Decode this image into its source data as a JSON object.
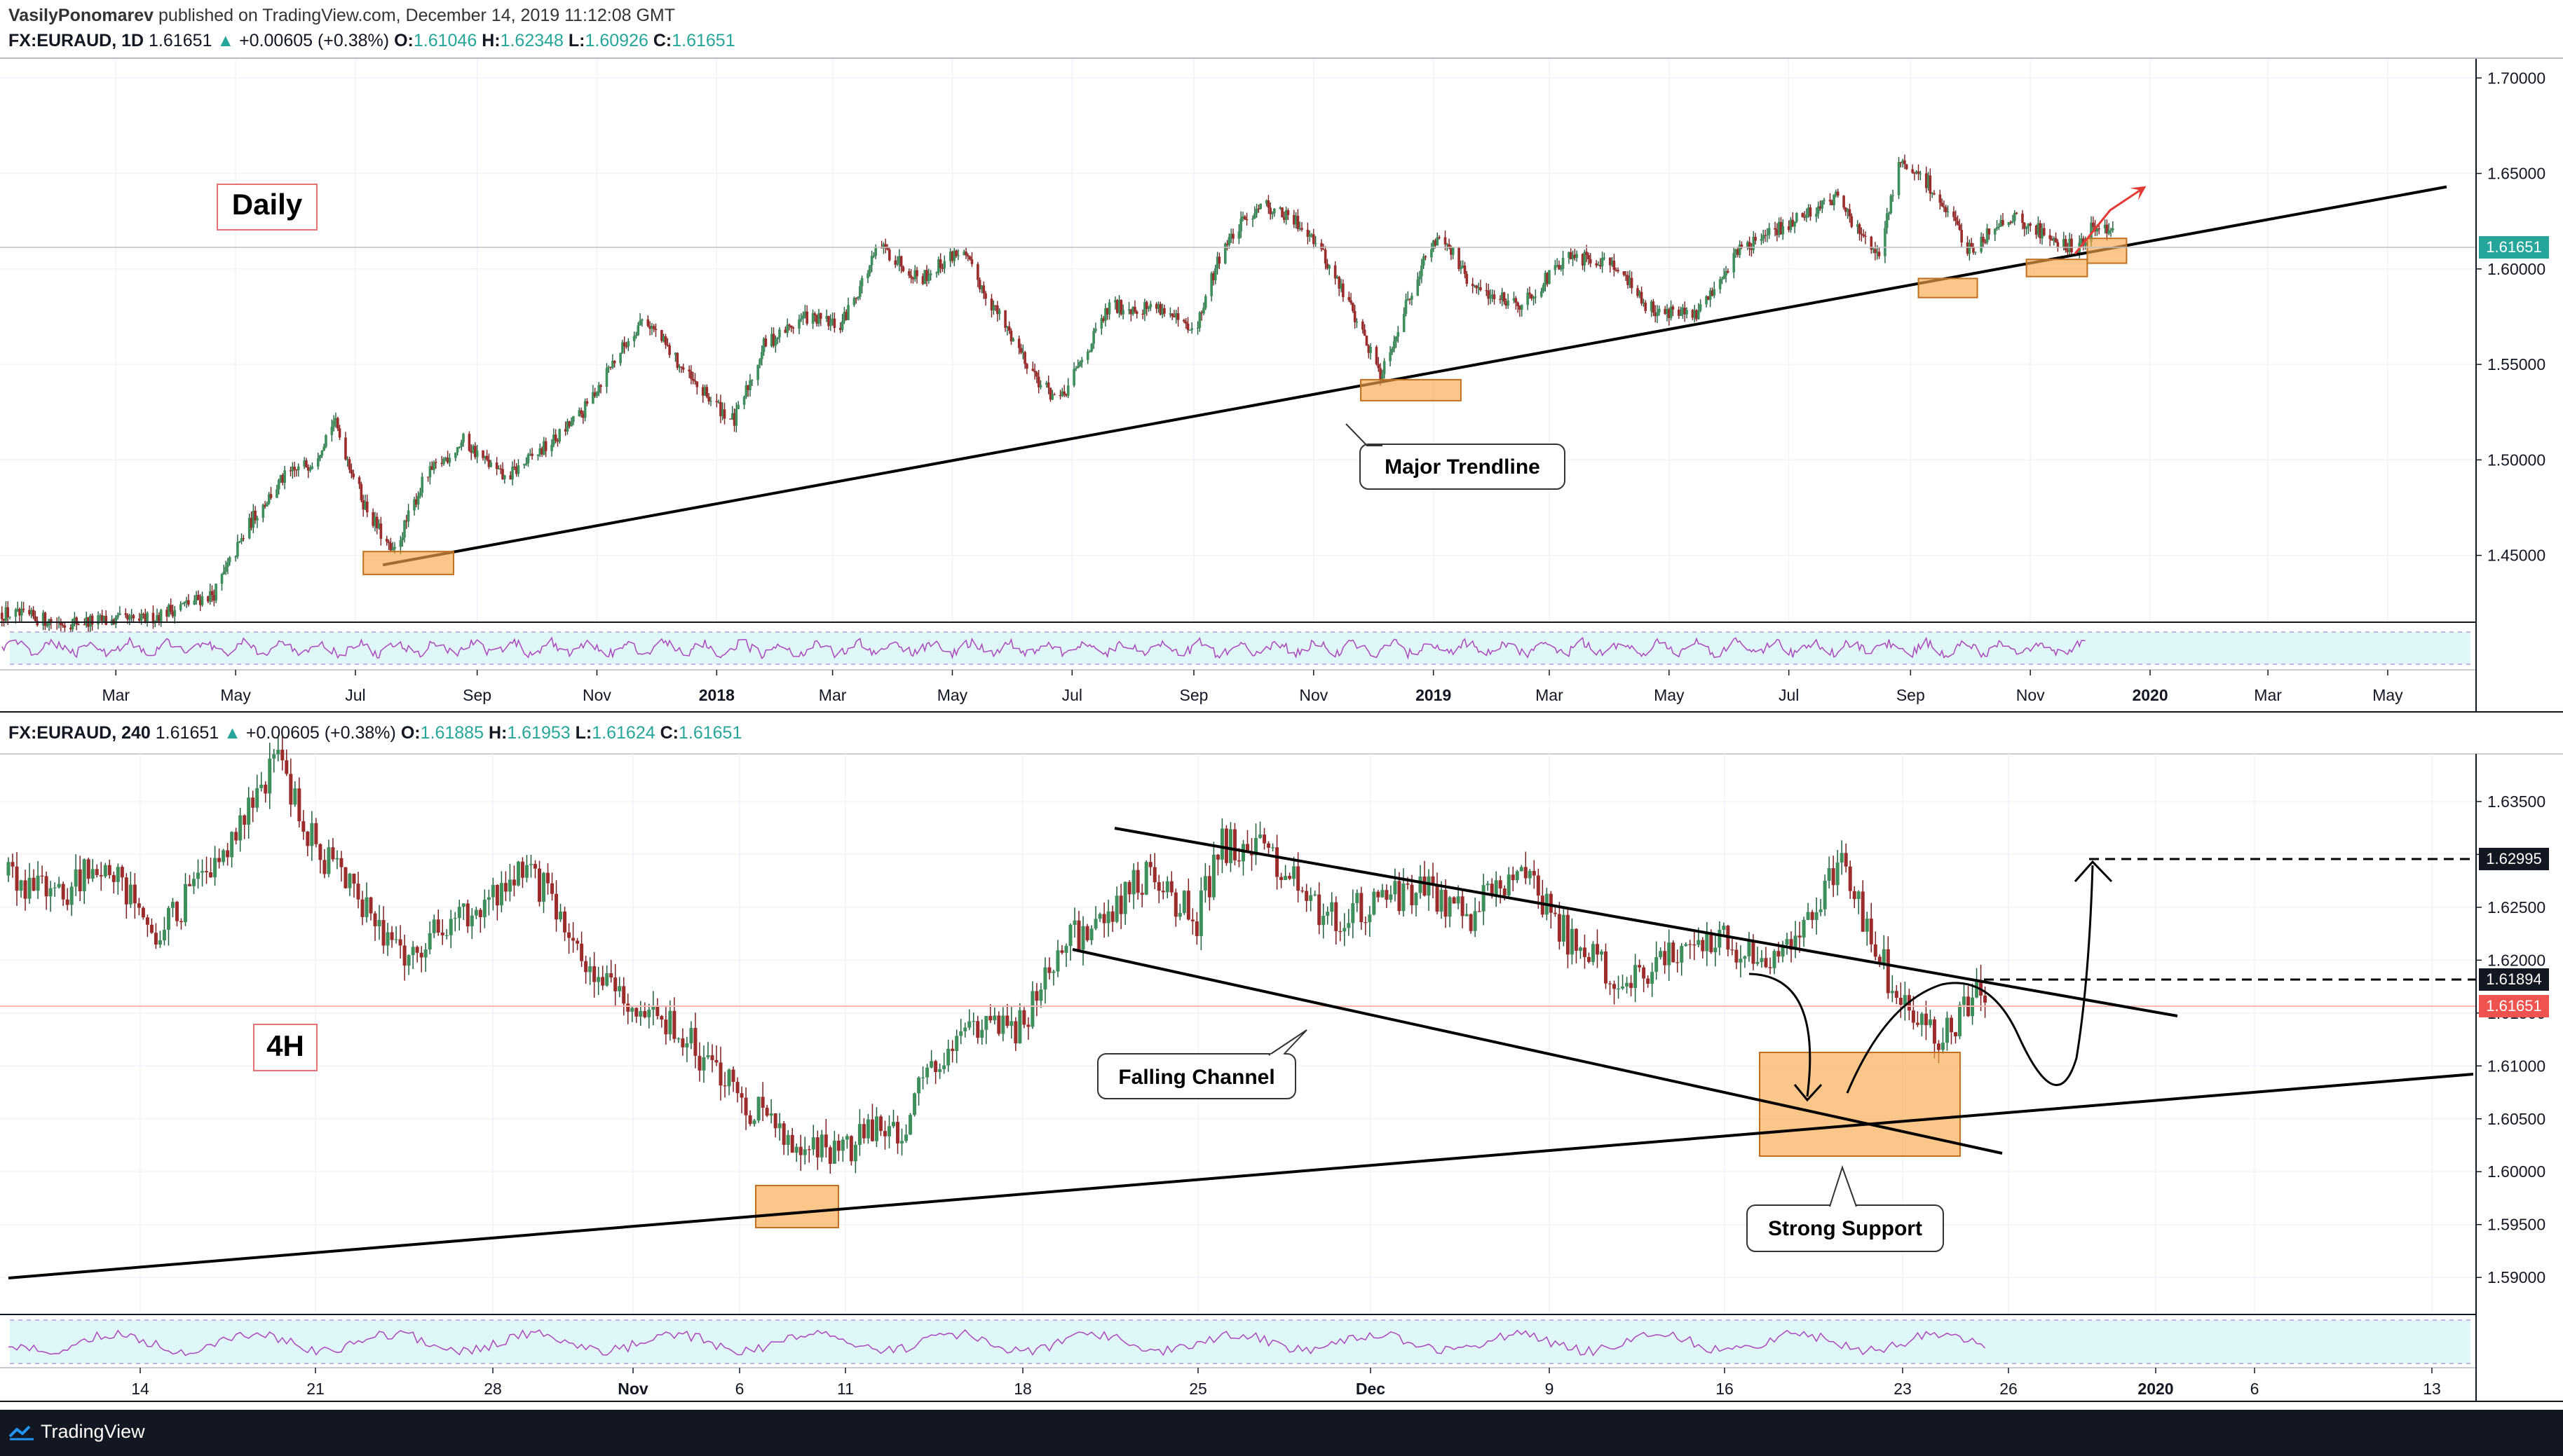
{
  "header": {
    "author": "VasilyPonomarev",
    "published": "published on TradingView.com, December 14, 2019 11:12:08 GMT"
  },
  "legend_daily": {
    "symbol": "FX:EURAUD, 1D",
    "price": "1.61651",
    "change": "+0.00605 (+0.38%)",
    "o_label": "O:",
    "o": "1.61046",
    "h_label": "H:",
    "h": "1.62348",
    "l_label": "L:",
    "l": "1.60926",
    "c_label": "C:",
    "c": "1.61651"
  },
  "legend_4h": {
    "symbol": "FX:EURAUD, 240",
    "price": "1.61651",
    "change": "+0.00605 (+0.38%)",
    "o_label": "O:",
    "o": "1.61885",
    "h_label": "H:",
    "h": "1.61953",
    "l_label": "L:",
    "l": "1.61624",
    "c_label": "C:",
    "c": "1.61651"
  },
  "footer": {
    "brand": "TradingView"
  },
  "colors": {
    "up": "#26a69a",
    "down": "#ef5350",
    "body_up": "#3d8f5c",
    "body_down": "#9c2c2c",
    "zone": "#f7a74a",
    "rsi_band": "#e0f7fa",
    "rsi_line": "#9c27b0",
    "price_tag": "#26a69a",
    "price_tag_red": "#ef5350"
  },
  "chart_data": [
    {
      "type": "candlestick",
      "title": "FX:EURAUD, 1D",
      "label": "Daily",
      "ylim": [
        1.415,
        1.71
      ],
      "y_ticks": [
        "1.70000",
        "1.65000",
        "1.60000",
        "1.55000",
        "1.50000",
        "1.45000"
      ],
      "y_tick_values": [
        1.7,
        1.65,
        1.6,
        1.55,
        1.5,
        1.45
      ],
      "x_ticks": [
        "Mar",
        "May",
        "Jul",
        "Sep",
        "Nov",
        "2018",
        "Mar",
        "May",
        "Jul",
        "Sep",
        "Nov",
        "2019",
        "Mar",
        "May",
        "Jul",
        "Sep",
        "Nov",
        "2020",
        "Mar",
        "May"
      ],
      "last_price": "1.61651",
      "price_path": [
        [
          "2017-01-01",
          1.42
        ],
        [
          "2017-02-01",
          1.415
        ],
        [
          "2017-03-15",
          1.416
        ],
        [
          "2017-04-20",
          1.43
        ],
        [
          "2017-05-10",
          1.47
        ],
        [
          "2017-05-25",
          1.49
        ],
        [
          "2017-06-10",
          1.5
        ],
        [
          "2017-06-20",
          1.521
        ],
        [
          "2017-07-05",
          1.478
        ],
        [
          "2017-07-20",
          1.45
        ],
        [
          "2017-08-05",
          1.49
        ],
        [
          "2017-08-25",
          1.51
        ],
        [
          "2017-09-15",
          1.49
        ],
        [
          "2017-10-10",
          1.51
        ],
        [
          "2017-10-25",
          1.525
        ],
        [
          "2017-11-05",
          1.545
        ],
        [
          "2017-11-25",
          1.575
        ],
        [
          "2017-12-20",
          1.54
        ],
        [
          "2018-01-10",
          1.52
        ],
        [
          "2018-01-25",
          1.56
        ],
        [
          "2018-02-15",
          1.575
        ],
        [
          "2018-03-05",
          1.57
        ],
        [
          "2018-03-25",
          1.612
        ],
        [
          "2018-04-15",
          1.595
        ],
        [
          "2018-05-05",
          1.61
        ],
        [
          "2018-05-25",
          1.575
        ],
        [
          "2018-06-15",
          1.54
        ],
        [
          "2018-06-25",
          1.53
        ],
        [
          "2018-07-20",
          1.58
        ],
        [
          "2018-08-15",
          1.58
        ],
        [
          "2018-09-01",
          1.565
        ],
        [
          "2018-09-15",
          1.61
        ],
        [
          "2018-10-05",
          1.635
        ],
        [
          "2018-10-30",
          1.62
        ],
        [
          "2018-11-20",
          1.58
        ],
        [
          "2018-12-05",
          1.545
        ],
        [
          "2018-12-25",
          1.6
        ],
        [
          "2019-01-05",
          1.62
        ],
        [
          "2019-01-20",
          1.59
        ],
        [
          "2019-02-15",
          1.582
        ],
        [
          "2019-03-10",
          1.605
        ],
        [
          "2019-04-01",
          1.605
        ],
        [
          "2019-04-20",
          1.58
        ],
        [
          "2019-05-15",
          1.575
        ],
        [
          "2019-06-05",
          1.61
        ],
        [
          "2019-06-25",
          1.62
        ],
        [
          "2019-07-25",
          1.638
        ],
        [
          "2019-08-15",
          1.605
        ],
        [
          "2019-08-26",
          1.655
        ],
        [
          "2019-09-10",
          1.645
        ],
        [
          "2019-10-01",
          1.61
        ],
        [
          "2019-10-20",
          1.628
        ],
        [
          "2019-11-05",
          1.62
        ],
        [
          "2019-11-25",
          1.61
        ],
        [
          "2019-12-05",
          1.625
        ],
        [
          "2019-12-14",
          1.6165
        ]
      ],
      "annotations": [
        {
          "text": "Daily",
          "kind": "label"
        },
        {
          "text": "Major Trendline",
          "kind": "callout"
        }
      ],
      "trendline": [
        [
          "2017-07-15",
          1.445
        ],
        [
          "2020-05-31",
          1.643
        ]
      ],
      "support_zones": [
        [
          "2017-07-05",
          "2017-08-20",
          1.44,
          1.452
        ],
        [
          "2018-11-25",
          "2019-01-15",
          1.531,
          1.542
        ],
        [
          "2019-09-05",
          "2019-10-05",
          1.585,
          1.595
        ],
        [
          "2019-10-30",
          "2019-11-30",
          1.596,
          1.605
        ],
        [
          "2019-11-30",
          "2019-12-20",
          1.603,
          1.616
        ]
      ]
    },
    {
      "type": "candlestick",
      "title": "FX:EURAUD, 240",
      "label": "4H",
      "ylim": [
        1.5865,
        1.6395
      ],
      "y_ticks": [
        "1.63500",
        "1.63000",
        "1.62500",
        "1.62000",
        "1.61500",
        "1.61000",
        "1.60500",
        "1.60000",
        "1.59500",
        "1.59000"
      ],
      "y_tick_values": [
        1.635,
        1.63,
        1.625,
        1.62,
        1.615,
        1.61,
        1.605,
        1.6,
        1.595,
        1.59
      ],
      "x_ticks": [
        "14",
        "21",
        "28",
        "Nov",
        "6",
        "11",
        "18",
        "25",
        "Dec",
        "9",
        "16",
        "23",
        "26",
        "2020",
        "6",
        "13"
      ],
      "price_tags": [
        "1.62995",
        "1.61894",
        "1.61651"
      ],
      "price_path": [
        [
          0,
          1.628
        ],
        [
          0.02,
          1.626
        ],
        [
          0.04,
          1.63
        ],
        [
          0.06,
          1.622
        ],
        [
          0.08,
          1.628
        ],
        [
          0.1,
          1.636
        ],
        [
          0.11,
          1.639
        ],
        [
          0.12,
          1.632
        ],
        [
          0.14,
          1.626
        ],
        [
          0.16,
          1.621
        ],
        [
          0.19,
          1.625
        ],
        [
          0.21,
          1.629
        ],
        [
          0.23,
          1.621
        ],
        [
          0.25,
          1.615
        ],
        [
          0.27,
          1.614
        ],
        [
          0.28,
          1.611
        ],
        [
          0.3,
          1.606
        ],
        [
          0.32,
          1.603
        ],
        [
          0.34,
          1.602
        ],
        [
          0.35,
          1.604
        ],
        [
          0.36,
          1.6035
        ],
        [
          0.37,
          1.61
        ],
        [
          0.39,
          1.613
        ],
        [
          0.41,
          1.614
        ],
        [
          0.42,
          1.62
        ],
        [
          0.44,
          1.624
        ],
        [
          0.46,
          1.628
        ],
        [
          0.48,
          1.624
        ],
        [
          0.49,
          1.631
        ],
        [
          0.51,
          1.63
        ],
        [
          0.53,
          1.624
        ],
        [
          0.55,
          1.625
        ],
        [
          0.57,
          1.627
        ],
        [
          0.59,
          1.624
        ],
        [
          0.61,
          1.629
        ],
        [
          0.63,
          1.622
        ],
        [
          0.65,
          1.618
        ],
        [
          0.67,
          1.62
        ],
        [
          0.69,
          1.622
        ],
        [
          0.71,
          1.62
        ],
        [
          0.73,
          1.625
        ],
        [
          0.74,
          1.629
        ],
        [
          0.76,
          1.618
        ],
        [
          0.78,
          1.612
        ],
        [
          0.8,
          1.618
        ]
      ],
      "annotations": [
        {
          "text": "4H",
          "kind": "label"
        },
        {
          "text": "Falling Channel",
          "kind": "callout"
        },
        {
          "text": "Strong Support",
          "kind": "callout"
        }
      ]
    }
  ]
}
